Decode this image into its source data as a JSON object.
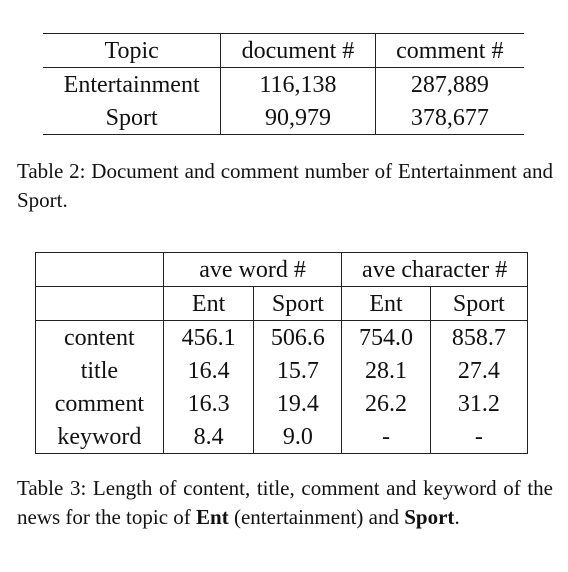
{
  "table2": {
    "headers": [
      "Topic",
      "document #",
      "comment #"
    ],
    "rows": [
      [
        "Entertainment",
        "116,138",
        "287,889"
      ],
      [
        "Sport",
        "90,979",
        "378,677"
      ]
    ],
    "caption": "Table 2: Document and comment number of Entertainment and Sport."
  },
  "table3": {
    "group_headers": [
      "ave word #",
      "ave character #"
    ],
    "sub_headers": [
      "Ent",
      "Sport",
      "Ent",
      "Sport"
    ],
    "rows": [
      {
        "label": "content",
        "values": [
          "456.1",
          "506.6",
          "754.0",
          "858.7"
        ]
      },
      {
        "label": "title",
        "values": [
          "16.4",
          "15.7",
          "28.1",
          "27.4"
        ]
      },
      {
        "label": "comment",
        "values": [
          "16.3",
          "19.4",
          "26.2",
          "31.2"
        ]
      },
      {
        "label": "keyword",
        "values": [
          "8.4",
          "9.0",
          "-",
          "-"
        ]
      }
    ],
    "caption": {
      "prefix": "Table 3: Length of content, title, comment and keyword of the news for the topic of ",
      "bold1": "Ent",
      "middle": " (entertainment) and ",
      "bold2": "Sport",
      "suffix": "."
    }
  }
}
